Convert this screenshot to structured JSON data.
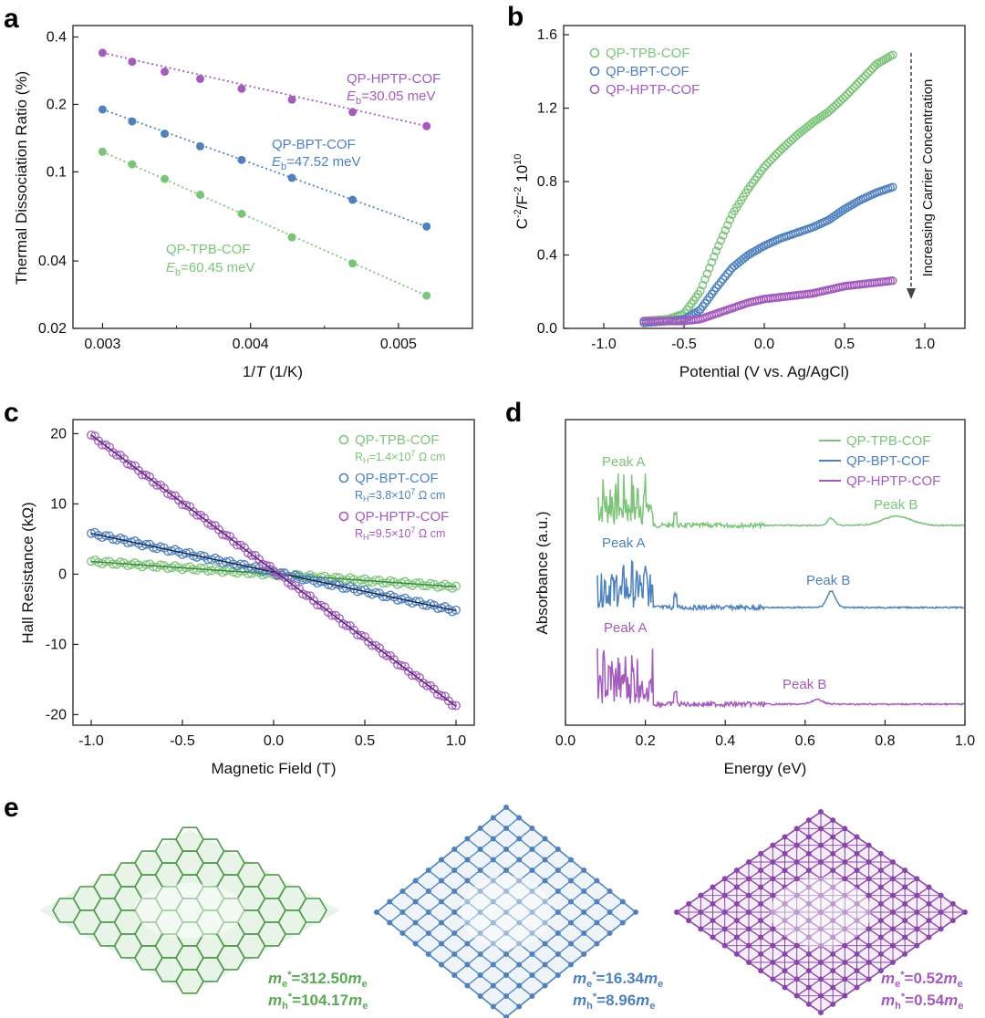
{
  "colors": {
    "green": "#7cc47a",
    "blue": "#4f81bd",
    "purple": "#a35bbd",
    "navy": "#1f2a5a",
    "darkpurple": "#5a2a7a",
    "darkgreen": "#3a8a3a"
  },
  "panels": {
    "a": {
      "letter": "a",
      "xlabel_pre": "1/",
      "xlabel_italic": "T",
      "xlabel_post": " (1/K)",
      "ylabel": "Thermal Dissociation Ratio (%)"
    },
    "b": {
      "letter": "b",
      "xlabel": "Potential (V vs. Ag/AgCl)",
      "ylabel_a": "C",
      "ylabel_b": "-2",
      "ylabel_c": "/F",
      "ylabel_d": "-2",
      "ylabel_e": " 10",
      "ylabel_f": "10",
      "arrow_label": "Increasing Carrier Concentration"
    },
    "c": {
      "letter": "c",
      "xlabel": "Magnetic Field (T)",
      "ylabel": "Hall Resistance (kΩ)"
    },
    "d": {
      "letter": "d",
      "xlabel": "Energy (eV)",
      "ylabel": "Absorbance (a.u.)"
    },
    "e": {
      "letter": "e"
    }
  },
  "chart_data": [
    {
      "panel": "a",
      "type": "scatter",
      "xlabel": "1/T (1/K)",
      "ylabel": "Thermal Dissociation Ratio (%)",
      "xlim": [
        0.0028,
        0.0055
      ],
      "ylim": [
        0.02,
        0.45
      ],
      "yscale": "log",
      "xticks": [
        "0.003",
        "0.004",
        "0.005"
      ],
      "yticks": [
        "0.02",
        "0.04",
        "0.1",
        "0.2",
        "0.4"
      ],
      "series": [
        {
          "name": "QP-HPTP-COF",
          "label": "QP-HPTP-COF",
          "eb_value": "=30.05 meV",
          "x": [
            0.003,
            0.0032,
            0.00342,
            0.00366,
            0.00394,
            0.00428,
            0.00469,
            0.00519
          ],
          "y": [
            0.34,
            0.31,
            0.28,
            0.26,
            0.235,
            0.21,
            0.185,
            0.16
          ]
        },
        {
          "name": "QP-BPT-COF",
          "label": "QP-BPT-COF",
          "eb_value": "=47.52 meV",
          "x": [
            0.003,
            0.0032,
            0.00342,
            0.00366,
            0.00394,
            0.00428,
            0.00469,
            0.00519
          ],
          "y": [
            0.19,
            0.168,
            0.148,
            0.13,
            0.113,
            0.094,
            0.075,
            0.057
          ]
        },
        {
          "name": "QP-TPB-COF",
          "label": "QP-TPB-COF",
          "eb_value": "=60.45 meV",
          "x": [
            0.003,
            0.0032,
            0.00342,
            0.00366,
            0.00394,
            0.00428,
            0.00469,
            0.00519
          ],
          "y": [
            0.123,
            0.108,
            0.093,
            0.079,
            0.065,
            0.051,
            0.039,
            0.028
          ]
        }
      ]
    },
    {
      "panel": "b",
      "type": "scatter",
      "xlabel": "Potential (V vs. Ag/AgCl)",
      "ylabel": "C-2/F-2 10^10",
      "xlim": [
        -1.25,
        1.25
      ],
      "ylim": [
        0.0,
        1.65
      ],
      "xticks": [
        "-1.0",
        "-0.5",
        "0.0",
        "0.5",
        "1.0"
      ],
      "yticks": [
        "0.0",
        "0.4",
        "0.8",
        "1.2",
        "1.6"
      ],
      "series": [
        {
          "name": "QP-TPB-COF",
          "x": [
            -0.75,
            -0.6,
            -0.5,
            -0.4,
            -0.3,
            -0.2,
            -0.1,
            0.0,
            0.1,
            0.2,
            0.3,
            0.4,
            0.5,
            0.6,
            0.7,
            0.8
          ],
          "y": [
            0.04,
            0.05,
            0.08,
            0.2,
            0.42,
            0.62,
            0.76,
            0.88,
            0.97,
            1.05,
            1.12,
            1.18,
            1.26,
            1.35,
            1.44,
            1.49
          ]
        },
        {
          "name": "QP-BPT-COF",
          "x": [
            -0.75,
            -0.6,
            -0.5,
            -0.4,
            -0.3,
            -0.2,
            -0.1,
            0.0,
            0.1,
            0.2,
            0.3,
            0.4,
            0.5,
            0.6,
            0.7,
            0.8
          ],
          "y": [
            0.03,
            0.04,
            0.05,
            0.1,
            0.22,
            0.33,
            0.4,
            0.45,
            0.49,
            0.52,
            0.55,
            0.59,
            0.65,
            0.7,
            0.74,
            0.77
          ]
        },
        {
          "name": "QP-HPTP-COF",
          "x": [
            -0.75,
            -0.6,
            -0.5,
            -0.4,
            -0.3,
            -0.2,
            -0.1,
            0.0,
            0.1,
            0.2,
            0.3,
            0.4,
            0.5,
            0.6,
            0.7,
            0.8
          ],
          "y": [
            0.04,
            0.04,
            0.04,
            0.05,
            0.08,
            0.11,
            0.14,
            0.16,
            0.17,
            0.18,
            0.19,
            0.21,
            0.23,
            0.24,
            0.25,
            0.26
          ]
        }
      ]
    },
    {
      "panel": "c",
      "type": "scatter",
      "xlabel": "Magnetic Field (T)",
      "ylabel": "Hall Resistance (kΩ)",
      "xlim": [
        -1.1,
        1.1
      ],
      "ylim": [
        -21.5,
        22
      ],
      "xticks": [
        "-1.0",
        "-0.5",
        "0.0",
        "0.5",
        "1.0"
      ],
      "yticks": [
        "-20",
        "-10",
        "0",
        "10",
        "20"
      ],
      "series": [
        {
          "name": "QP-TPB-COF",
          "rh_pre": "R",
          "rh_sub": "H",
          "rh_mid": "=1.4×10",
          "rh_exp": "7",
          "rh_post": " Ω cm",
          "x": [
            -1.0,
            1.0
          ],
          "y": [
            1.8,
            -1.8
          ]
        },
        {
          "name": "QP-BPT-COF",
          "rh_pre": "R",
          "rh_sub": "H",
          "rh_mid": "=3.8×10",
          "rh_exp": "7",
          "rh_post": " Ω cm",
          "x": [
            -1.0,
            1.0
          ],
          "y": [
            5.8,
            -5.2
          ]
        },
        {
          "name": "QP-HPTP-COF",
          "rh_pre": "R",
          "rh_sub": "H",
          "rh_mid": "=9.5×10",
          "rh_exp": "7",
          "rh_post": " Ω cm",
          "x": [
            -1.0,
            1.0
          ],
          "y": [
            19.8,
            -18.8
          ]
        }
      ]
    },
    {
      "panel": "d",
      "type": "line",
      "xlabel": "Energy (eV)",
      "ylabel": "Absorbance (a.u.)",
      "xlim": [
        0.0,
        1.0
      ],
      "xticks": [
        "0.0",
        "0.2",
        "0.4",
        "0.6",
        "0.8",
        "1.0"
      ],
      "series": [
        {
          "name": "QP-TPB-COF",
          "peakA": "Peak A",
          "peakB": "Peak B"
        },
        {
          "name": "QP-BPT-COF",
          "peakA": "Peak A",
          "peakB": "Peak B"
        },
        {
          "name": "QP-HPTP-COF",
          "peakA": "Peak A",
          "peakB": "Peak B"
        }
      ]
    }
  ],
  "panel_e": [
    {
      "name": "QP-TPB-COF",
      "me_val": "=312.50",
      "mh_val": "=104.17"
    },
    {
      "name": "QP-BPT-COF",
      "me_val": "=16.34",
      "mh_val": "=8.96"
    },
    {
      "name": "QP-HPTP-COF",
      "me_val": "=0.52",
      "mh_val": "=0.54"
    }
  ],
  "mass_sym": {
    "m": "m",
    "e": "e",
    "h": "h",
    "star": "*"
  }
}
